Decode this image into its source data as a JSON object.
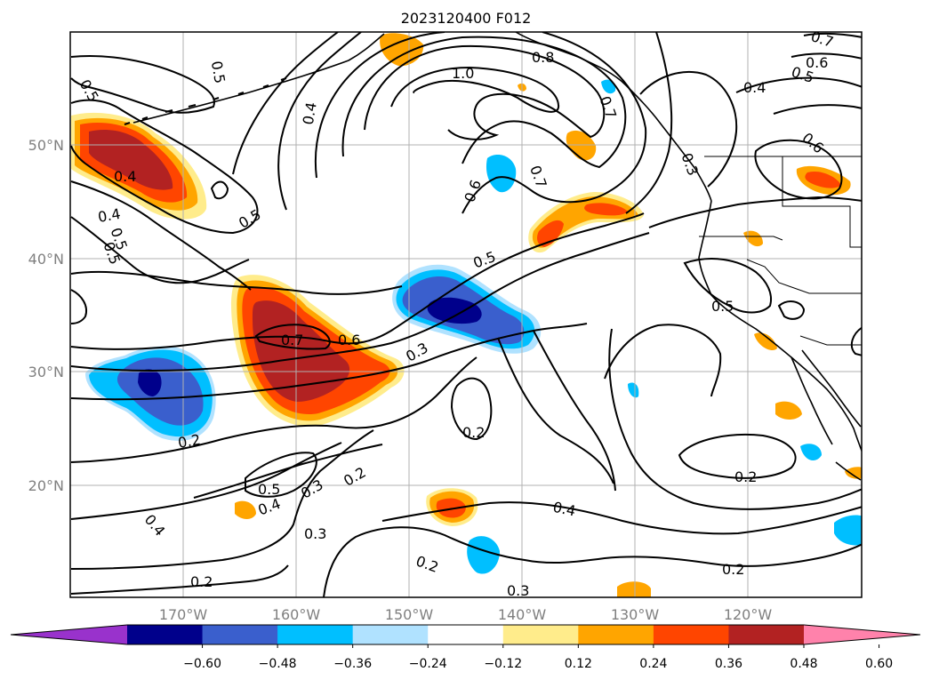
{
  "title": "2023120400 F012",
  "lat_labels": [
    "50°N",
    "40°N",
    "30°N",
    "20°N"
  ],
  "lon_labels": [
    "170°W",
    "160°W",
    "150°W",
    "140°W",
    "130°W",
    "120°W"
  ],
  "colorbar": {
    "colors": [
      "#9932cc",
      "#00008b",
      "#3a5fcd",
      "#00bfff",
      "#b0e2ff",
      "#ffffff",
      "#ffec8b",
      "#ffa500",
      "#ff4500",
      "#b22222",
      "#ff82ab"
    ],
    "tick_labels": [
      "−0.60",
      "−0.48",
      "−0.36",
      "−0.24",
      "−0.12",
      "0.12",
      "0.24",
      "0.36",
      "0.48",
      "0.60"
    ]
  },
  "contour_labels": [
    "1.0",
    "0.8",
    "0.7",
    "0.6",
    "0.5",
    "0.4",
    "0.7",
    "0.6",
    "0.4",
    "0.5",
    "0.5",
    "0.5",
    "0.4",
    "0.6",
    "0.7",
    "0.3",
    "0.5",
    "0.6",
    "0.7",
    "0.5",
    "0.3",
    "0.2",
    "0.2",
    "0.5",
    "0.4",
    "0.3",
    "0.2",
    "0.4",
    "0.3",
    "0.2",
    "0.2",
    "0.3",
    "0.4",
    "0.2",
    "0.2",
    "0.5",
    "0.4",
    "0.5"
  ]
}
